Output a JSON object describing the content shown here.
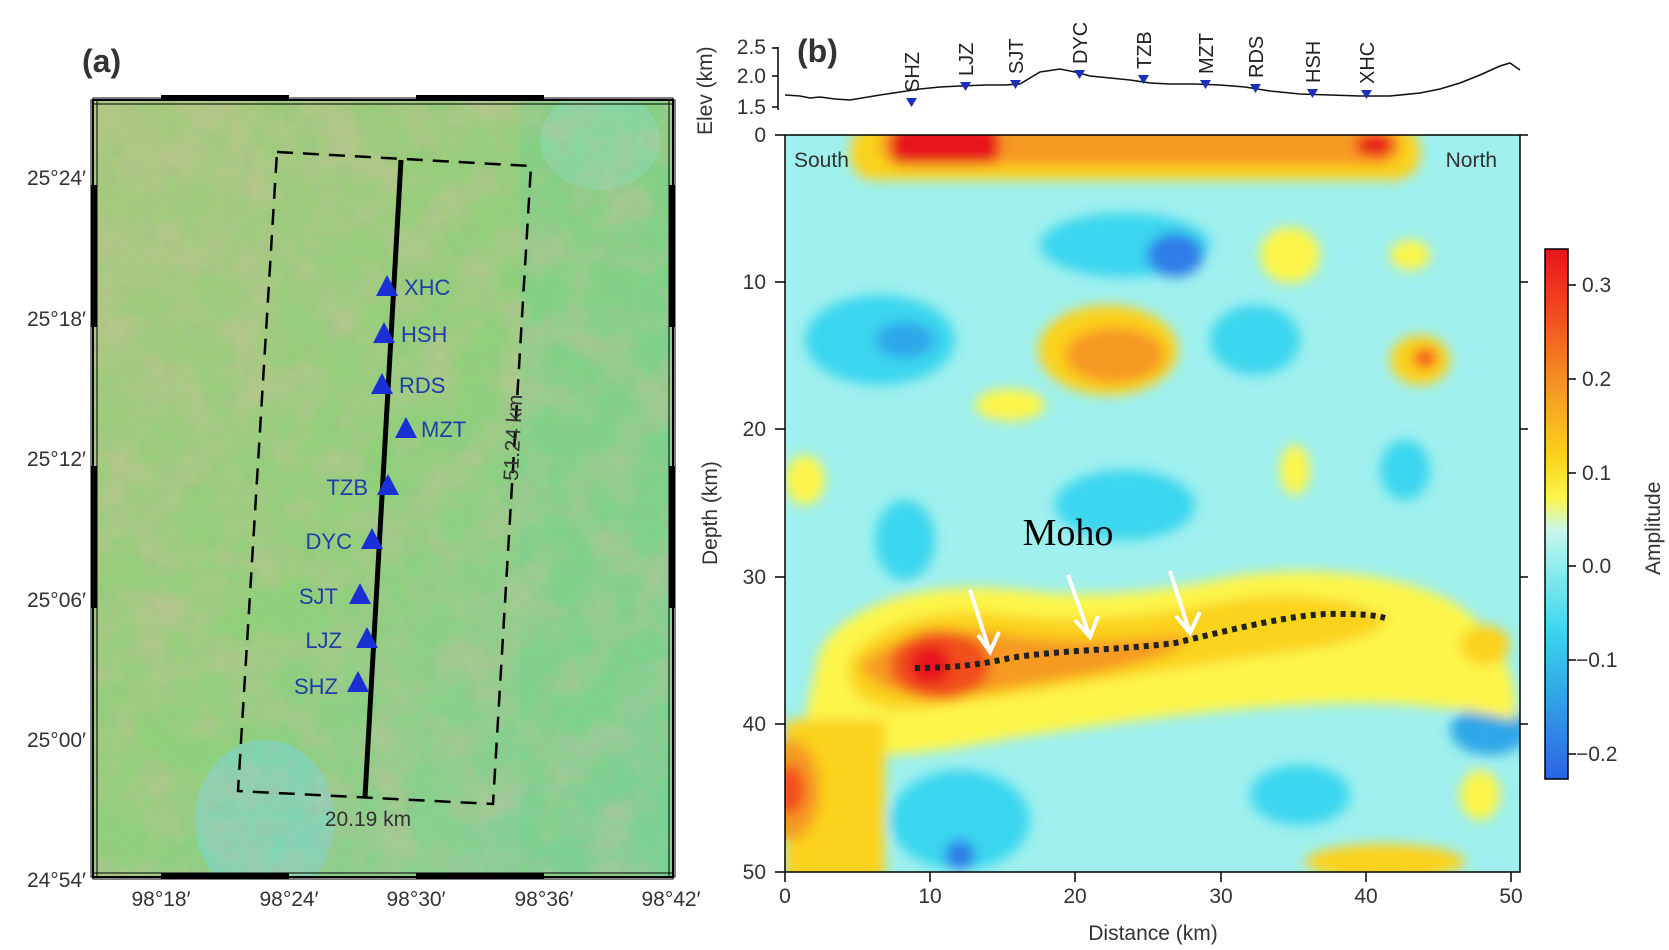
{
  "figure": {
    "panel_a": {
      "label": "(a)",
      "lon_ticks": [
        "98°18′",
        "98°24′",
        "98°30′",
        "98°36′",
        "98°42′"
      ],
      "lat_ticks": [
        "25°24′",
        "25°18′",
        "25°12′",
        "25°06′",
        "25°00′",
        "24°54′"
      ],
      "stations": [
        "XHC",
        "HSH",
        "RDS",
        "MZT",
        "TZB",
        "DYC",
        "SJT",
        "LJZ",
        "SHZ"
      ],
      "box_width_label": "20.19 km",
      "box_length_label": "51.24 km"
    },
    "panel_b": {
      "label": "(b)",
      "elev_axis_label": "Elev (km)",
      "elev_ticks": [
        "2.5",
        "2.0",
        "1.5"
      ],
      "stations": [
        "SHZ",
        "LJZ",
        "SJT",
        "DYC",
        "TZB",
        "MZT",
        "RDS",
        "HSH",
        "XHC"
      ],
      "south_label": "South",
      "north_label": "North",
      "depth_axis_label": "Depth (km)",
      "depth_ticks": [
        "0",
        "10",
        "20",
        "30",
        "40",
        "50"
      ],
      "distance_axis_label": "Distance (km)",
      "distance_ticks": [
        "0",
        "10",
        "20",
        "30",
        "40",
        "50"
      ],
      "moho_label": "Moho",
      "colorbar_label": "Amplitude",
      "colorbar_ticks": [
        "0.3",
        "0.2",
        "0.1",
        "0.0",
        "−0.1",
        "−0.2"
      ]
    }
  }
}
